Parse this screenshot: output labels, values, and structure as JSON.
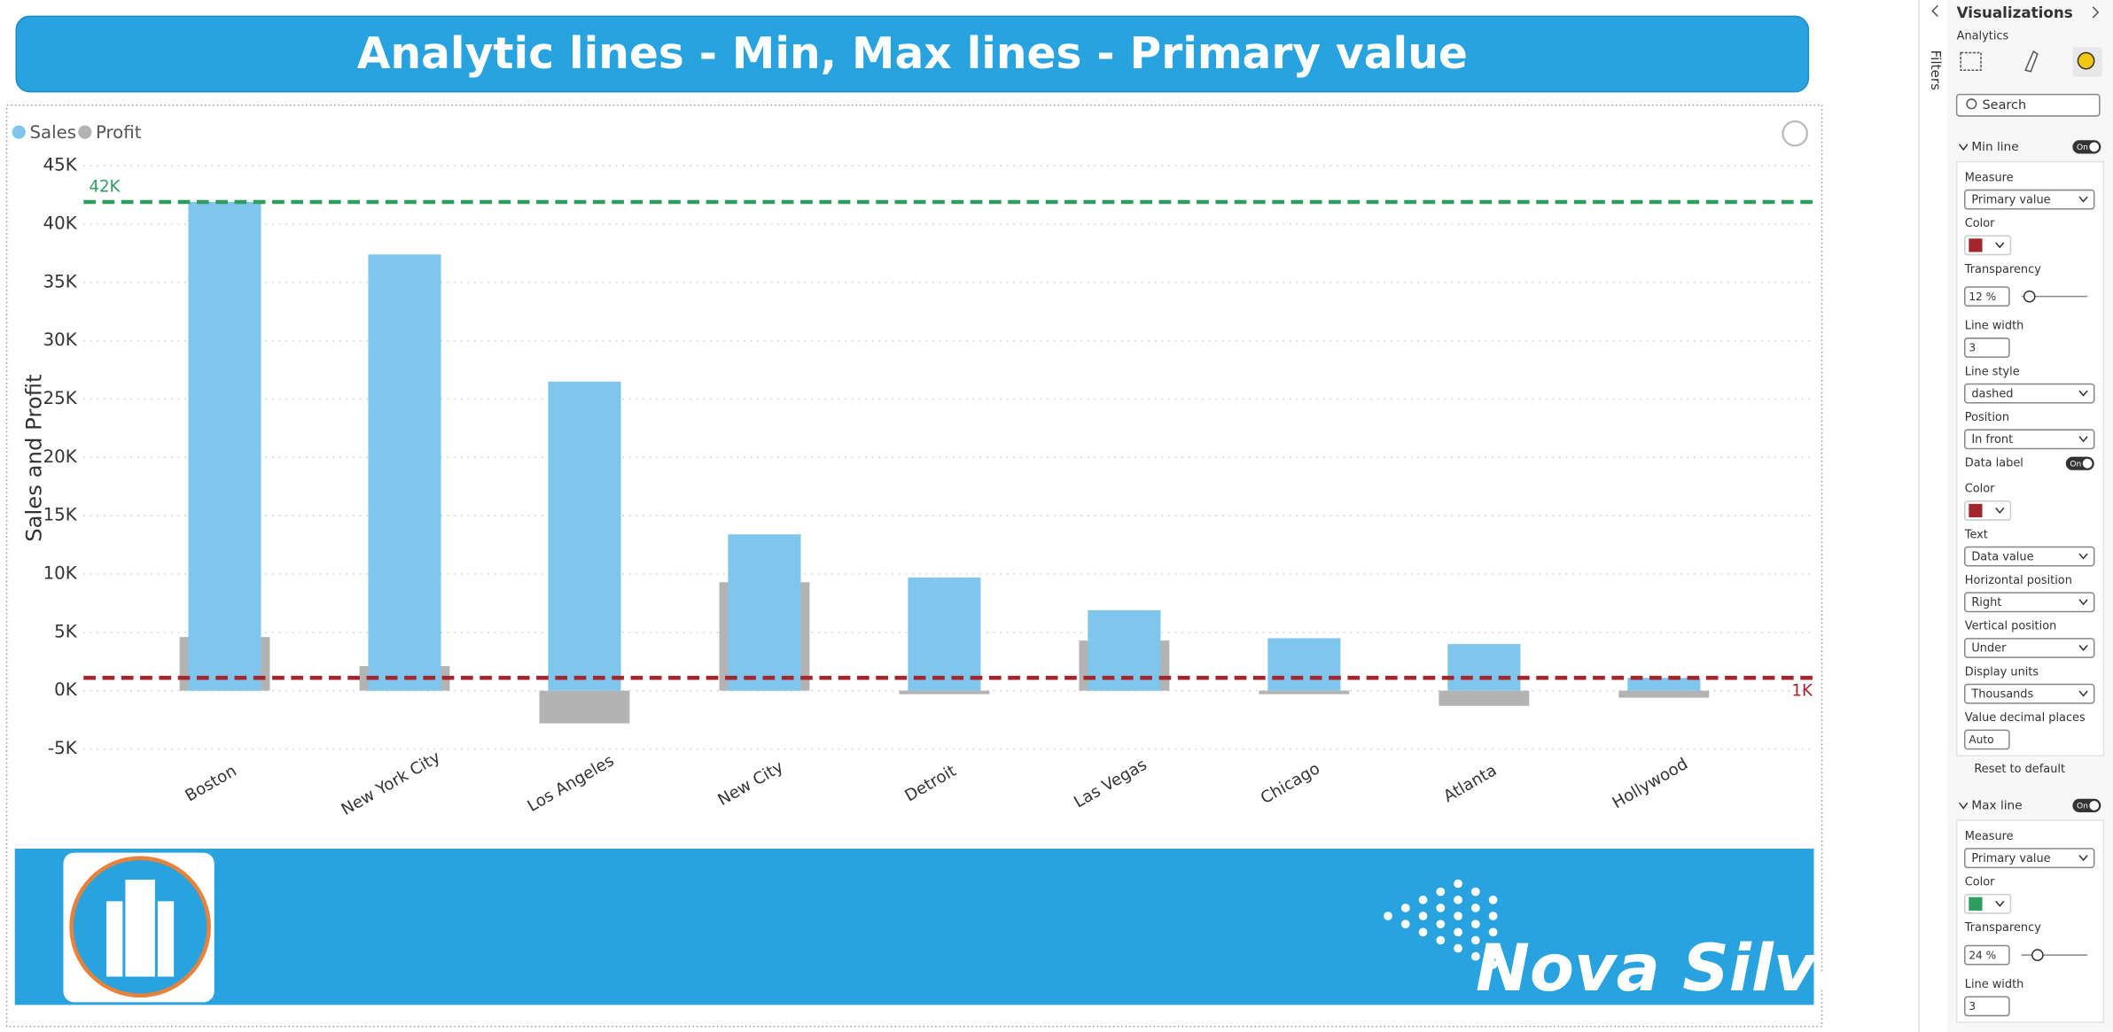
{
  "header": {
    "title": "Analytic lines - Min, Max lines - Primary value"
  },
  "chart_data": {
    "type": "bar",
    "y_label": "Sales and Profit",
    "categories": [
      "Boston",
      "New York City",
      "Los Angeles",
      "New City",
      "Detroit",
      "Las Vegas",
      "Chicago",
      "Atlanta",
      "Hollywood"
    ],
    "series": [
      {
        "name": "Sales",
        "color": "#7fc6ec",
        "values": [
          41900,
          37400,
          26500,
          13400,
          9700,
          6900,
          4500,
          4000,
          1100
        ]
      },
      {
        "name": "Profit",
        "color": "#b3b3b3",
        "values": [
          4600,
          2100,
          -2800,
          9300,
          -300,
          4300,
          -300,
          -1300,
          -600
        ]
      }
    ],
    "ylim": [
      -5000,
      45000
    ],
    "yticks": [
      {
        "value": -5000,
        "label": "-5K"
      },
      {
        "value": 0,
        "label": "0K"
      },
      {
        "value": 5000,
        "label": "5K"
      },
      {
        "value": 10000,
        "label": "10K"
      },
      {
        "value": 15000,
        "label": "15K"
      },
      {
        "value": 20000,
        "label": "20K"
      },
      {
        "value": 25000,
        "label": "25K"
      },
      {
        "value": 30000,
        "label": "30K"
      },
      {
        "value": 35000,
        "label": "35K"
      },
      {
        "value": 40000,
        "label": "40K"
      },
      {
        "value": 45000,
        "label": "45K"
      }
    ],
    "grid": true,
    "reference_lines": [
      {
        "value": 41900,
        "label": "42K",
        "color": "#2e9e5e"
      },
      {
        "value": 1100,
        "label": "1K",
        "color": "#a4262c"
      }
    ]
  },
  "footer": {
    "brand": "Nova Silva"
  },
  "panel": {
    "title": "Visualizations",
    "tab": "Analytics",
    "filters": "Filters",
    "search": "Search",
    "reset": "Reset to default",
    "sections": [
      {
        "title": "Min line",
        "toggle": "On",
        "fields": [
          {
            "label": "Measure",
            "value": "Primary value"
          },
          {
            "label": "Color",
            "color": "#a4262c"
          },
          {
            "label": "Transparency",
            "spin": "12 %"
          },
          {
            "label": "Line width",
            "spin": "3"
          },
          {
            "label": "Line style",
            "value": "dashed"
          },
          {
            "label": "Position",
            "value": "In front"
          },
          {
            "label": "Data label",
            "toggle": "On"
          },
          {
            "label": "Color",
            "color": "#a4262c"
          },
          {
            "label": "Text",
            "value": "Data value"
          },
          {
            "label": "Horizontal position",
            "value": "Right"
          },
          {
            "label": "Vertical position",
            "value": "Under"
          },
          {
            "label": "Display units",
            "value": "Thousands"
          },
          {
            "label": "Value decimal places",
            "spin": "Auto"
          }
        ]
      },
      {
        "title": "Max line",
        "toggle": "On",
        "fields": [
          {
            "label": "Measure",
            "value": "Primary value"
          },
          {
            "label": "Color",
            "color": "#2e9e5e"
          },
          {
            "label": "Transparency",
            "spin": "24 %"
          },
          {
            "label": "Line width",
            "spin": "3"
          }
        ]
      }
    ]
  }
}
